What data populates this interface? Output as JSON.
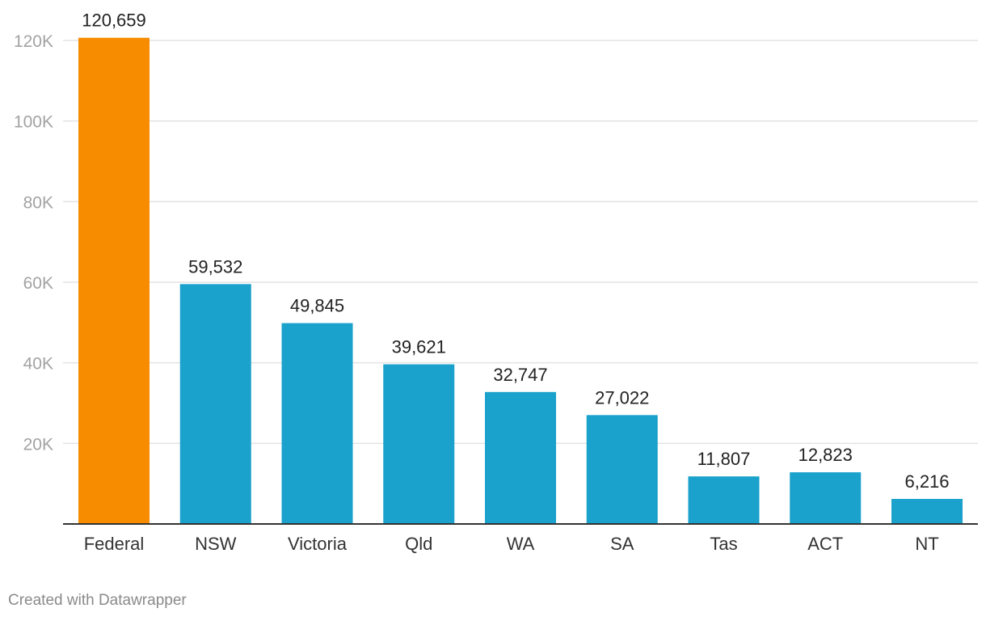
{
  "chart_data": {
    "type": "bar",
    "categories": [
      "Federal",
      "NSW",
      "Victoria",
      "Qld",
      "WA",
      "SA",
      "Tas",
      "ACT",
      "NT"
    ],
    "values": [
      120659,
      59532,
      49845,
      39621,
      32747,
      27022,
      11807,
      12823,
      6216
    ],
    "value_labels": [
      "120,659",
      "59,532",
      "49,845",
      "39,621",
      "32,747",
      "27,022",
      "11,807",
      "12,823",
      "6,216"
    ],
    "highlight_index": 0,
    "ylim": [
      0,
      120000
    ],
    "yticks": [
      20000,
      40000,
      60000,
      80000,
      100000,
      120000
    ],
    "ytick_labels": [
      "20K",
      "40K",
      "60K",
      "80K",
      "100K",
      "120K"
    ],
    "grid": true,
    "colors": {
      "highlight": "#f78c00",
      "bar": "#1aa1cc",
      "grid": "#e3e3e3",
      "axis": "#333333"
    }
  },
  "footer": {
    "credit": "Created with Datawrapper"
  }
}
